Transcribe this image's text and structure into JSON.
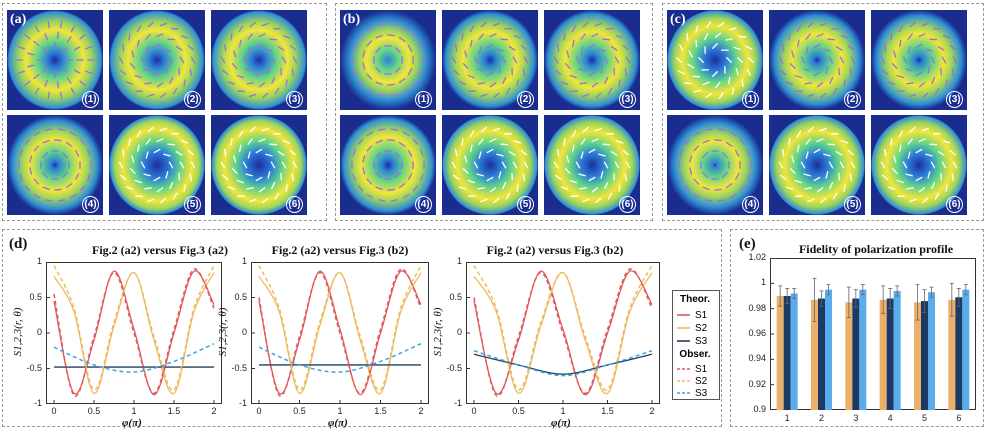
{
  "image_groups": [
    {
      "label": "(a)",
      "tiles": [
        "(1)",
        "(2)",
        "(3)",
        "(4)",
        "(5)",
        "(6)"
      ]
    },
    {
      "label": "(b)",
      "tiles": [
        "(1)",
        "(2)",
        "(3)",
        "(4)",
        "(5)",
        "(6)"
      ]
    },
    {
      "label": "(c)",
      "tiles": [
        "(1)",
        "(2)",
        "(3)",
        "(4)",
        "(5)",
        "(6)"
      ]
    }
  ],
  "panel_d": {
    "label": "(d)",
    "ylabel": "S1,2,3(r, θ)",
    "xlabel": "φ(π)",
    "legend": {
      "theor_header": "Theor.",
      "obser_header": "Obser.",
      "theor_items": [
        "S1",
        "S2",
        "S3"
      ],
      "obser_items": [
        "S1",
        "S2",
        "S3"
      ]
    }
  },
  "panel_e": {
    "label": "(e)",
    "title": "Fidelity of polarization profile"
  },
  "colors": {
    "s1": "#e0595b",
    "s2": "#eeba5e",
    "s3_theor": "#223d5e",
    "s3_obser": "#3aa5e6",
    "bar_orange": "#ecb169",
    "bar_navy": "#1d3a66",
    "bar_blue": "#5aacec"
  },
  "chart_data": [
    {
      "type": "line",
      "title": "Fig.2 (a2) versus Fig.3 (a2)",
      "xlabel": "φ(π)",
      "ylabel": "S1,2,3(r, θ)",
      "xlim": [
        0,
        2
      ],
      "ylim": [
        -1,
        1
      ],
      "x_ticks": [
        "0",
        "0.5",
        "1",
        "1.5",
        "2"
      ],
      "y_ticks": [
        "1",
        "0.5",
        "0",
        "-0.5",
        "-1"
      ],
      "series": [
        {
          "name": "S1",
          "group": "Theor.",
          "style": "solid",
          "x": [
            0,
            0.25,
            0.5,
            0.75,
            1,
            1.25,
            1.5,
            1.75,
            2
          ],
          "y": [
            0.45,
            -0.85,
            -0.1,
            0.87,
            0.05,
            -0.87,
            0.0,
            0.87,
            0.4
          ]
        },
        {
          "name": "S2",
          "group": "Theor.",
          "style": "solid",
          "x": [
            0,
            0.25,
            0.5,
            0.75,
            1,
            1.25,
            1.5,
            1.75,
            2
          ],
          "y": [
            0.8,
            0.3,
            -0.85,
            0.1,
            0.85,
            -0.1,
            -0.85,
            0.3,
            0.85
          ]
        },
        {
          "name": "S3",
          "group": "Theor.",
          "style": "solid",
          "x": [
            0,
            2
          ],
          "y": [
            -0.48,
            -0.48
          ]
        },
        {
          "name": "S1",
          "group": "Obser.",
          "style": "dashed",
          "x": [
            0,
            0.25,
            0.5,
            0.75,
            1,
            1.25,
            1.5,
            1.75,
            2
          ],
          "y": [
            0.55,
            -0.88,
            -0.05,
            0.85,
            0.0,
            -0.85,
            0.05,
            0.9,
            0.35
          ]
        },
        {
          "name": "S2",
          "group": "Obser.",
          "style": "dashed",
          "x": [
            0,
            0.25,
            0.5,
            0.75,
            1,
            1.25,
            1.5,
            1.75,
            2
          ],
          "y": [
            0.95,
            0.35,
            -0.8,
            0.15,
            0.85,
            -0.05,
            -0.8,
            0.35,
            0.95
          ]
        },
        {
          "name": "S3",
          "group": "Obser.",
          "style": "dashed",
          "x": [
            0,
            0.5,
            1,
            1.5,
            2
          ],
          "y": [
            -0.2,
            -0.45,
            -0.55,
            -0.4,
            -0.15
          ]
        }
      ]
    },
    {
      "type": "line",
      "title": "Fig.2 (a2) versus Fig.3 (b2)",
      "xlabel": "φ(π)",
      "ylabel": "S1,2,3(r, θ)",
      "xlim": [
        0,
        2
      ],
      "ylim": [
        -1,
        1
      ],
      "x_ticks": [
        "0",
        "0.5",
        "1",
        "1.5",
        "2"
      ],
      "y_ticks": [
        "1",
        "0.5",
        "0",
        "-0.5",
        "-1"
      ],
      "series": [
        {
          "name": "S1",
          "group": "Theor.",
          "style": "solid",
          "x": [
            0,
            0.25,
            0.5,
            0.75,
            1,
            1.25,
            1.5,
            1.75,
            2
          ],
          "y": [
            0.45,
            -0.85,
            -0.1,
            0.87,
            0.05,
            -0.87,
            0.0,
            0.87,
            0.4
          ]
        },
        {
          "name": "S2",
          "group": "Theor.",
          "style": "solid",
          "x": [
            0,
            0.25,
            0.5,
            0.75,
            1,
            1.25,
            1.5,
            1.75,
            2
          ],
          "y": [
            0.8,
            0.3,
            -0.85,
            0.1,
            0.85,
            -0.1,
            -0.85,
            0.3,
            0.85
          ]
        },
        {
          "name": "S3",
          "group": "Theor.",
          "style": "solid",
          "x": [
            0,
            2
          ],
          "y": [
            -0.45,
            -0.45
          ]
        },
        {
          "name": "S1",
          "group": "Obser.",
          "style": "dashed",
          "x": [
            0,
            0.25,
            0.5,
            0.75,
            1,
            1.25,
            1.5,
            1.75,
            2
          ],
          "y": [
            0.5,
            -0.88,
            -0.05,
            0.85,
            0.0,
            -0.85,
            0.05,
            0.9,
            0.35
          ]
        },
        {
          "name": "S2",
          "group": "Obser.",
          "style": "dashed",
          "x": [
            0,
            0.25,
            0.5,
            0.75,
            1,
            1.25,
            1.5,
            1.75,
            2
          ],
          "y": [
            0.95,
            0.35,
            -0.8,
            0.15,
            0.85,
            -0.05,
            -0.8,
            0.35,
            0.95
          ]
        },
        {
          "name": "S3",
          "group": "Obser.",
          "style": "dashed",
          "x": [
            0,
            0.5,
            1,
            1.5,
            2
          ],
          "y": [
            -0.2,
            -0.45,
            -0.55,
            -0.4,
            -0.15
          ]
        }
      ]
    },
    {
      "type": "line",
      "title": "Fig.2 (a2) versus Fig.3 (b2)",
      "xlabel": "φ(π)",
      "ylabel": "S1,2,3(r, θ)",
      "xlim": [
        0,
        2
      ],
      "ylim": [
        -1,
        1
      ],
      "x_ticks": [
        "0",
        "0.5",
        "1",
        "1.5",
        "2"
      ],
      "y_ticks": [
        "1",
        "0.5",
        "0",
        "-0.5",
        "-1"
      ],
      "series": [
        {
          "name": "S1",
          "group": "Theor.",
          "style": "solid",
          "x": [
            0,
            0.25,
            0.5,
            0.75,
            1,
            1.25,
            1.5,
            1.75,
            2
          ],
          "y": [
            0.45,
            -0.85,
            -0.1,
            0.87,
            0.05,
            -0.87,
            0.0,
            0.87,
            0.4
          ]
        },
        {
          "name": "S2",
          "group": "Theor.",
          "style": "solid",
          "x": [
            0,
            0.25,
            0.5,
            0.75,
            1,
            1.25,
            1.5,
            1.75,
            2
          ],
          "y": [
            0.8,
            0.3,
            -0.85,
            0.1,
            0.85,
            -0.1,
            -0.85,
            0.3,
            0.85
          ]
        },
        {
          "name": "S3",
          "group": "Theor.",
          "style": "solid",
          "x": [
            0,
            0.5,
            1,
            1.5,
            2
          ],
          "y": [
            -0.3,
            -0.45,
            -0.58,
            -0.45,
            -0.3
          ]
        },
        {
          "name": "S1",
          "group": "Obser.",
          "style": "dashed",
          "x": [
            0,
            0.25,
            0.5,
            0.75,
            1,
            1.25,
            1.5,
            1.75,
            2
          ],
          "y": [
            0.5,
            -0.88,
            -0.05,
            0.85,
            0.0,
            -0.85,
            0.05,
            0.9,
            0.35
          ]
        },
        {
          "name": "S2",
          "group": "Obser.",
          "style": "dashed",
          "x": [
            0,
            0.25,
            0.5,
            0.75,
            1,
            1.25,
            1.5,
            1.75,
            2
          ],
          "y": [
            0.95,
            0.35,
            -0.8,
            0.15,
            0.85,
            -0.05,
            -0.8,
            0.35,
            0.95
          ]
        },
        {
          "name": "S3",
          "group": "Obser.",
          "style": "dashed",
          "x": [
            0,
            0.5,
            1,
            1.5,
            2
          ],
          "y": [
            -0.25,
            -0.45,
            -0.6,
            -0.45,
            -0.25
          ]
        }
      ]
    },
    {
      "type": "bar",
      "title": "Fidelity of polarization profile",
      "categories": [
        "1",
        "2",
        "3",
        "4",
        "5",
        "6"
      ],
      "ylim": [
        0.9,
        1.02
      ],
      "y_ticks": [
        "1.02",
        "1",
        "0.98",
        "0.96",
        "0.94",
        "0.92",
        "0.9"
      ],
      "series": [
        {
          "values": [
            0.99,
            0.987,
            0.985,
            0.987,
            0.985,
            0.987
          ],
          "errors": [
            0.008,
            0.017,
            0.012,
            0.011,
            0.014,
            0.013
          ]
        },
        {
          "values": [
            0.99,
            0.988,
            0.988,
            0.988,
            0.986,
            0.989
          ],
          "errors": [
            0.006,
            0.006,
            0.007,
            0.008,
            0.009,
            0.007
          ]
        },
        {
          "values": [
            0.992,
            0.995,
            0.995,
            0.994,
            0.993,
            0.995
          ],
          "errors": [
            0.004,
            0.004,
            0.004,
            0.004,
            0.004,
            0.004
          ]
        }
      ]
    }
  ]
}
